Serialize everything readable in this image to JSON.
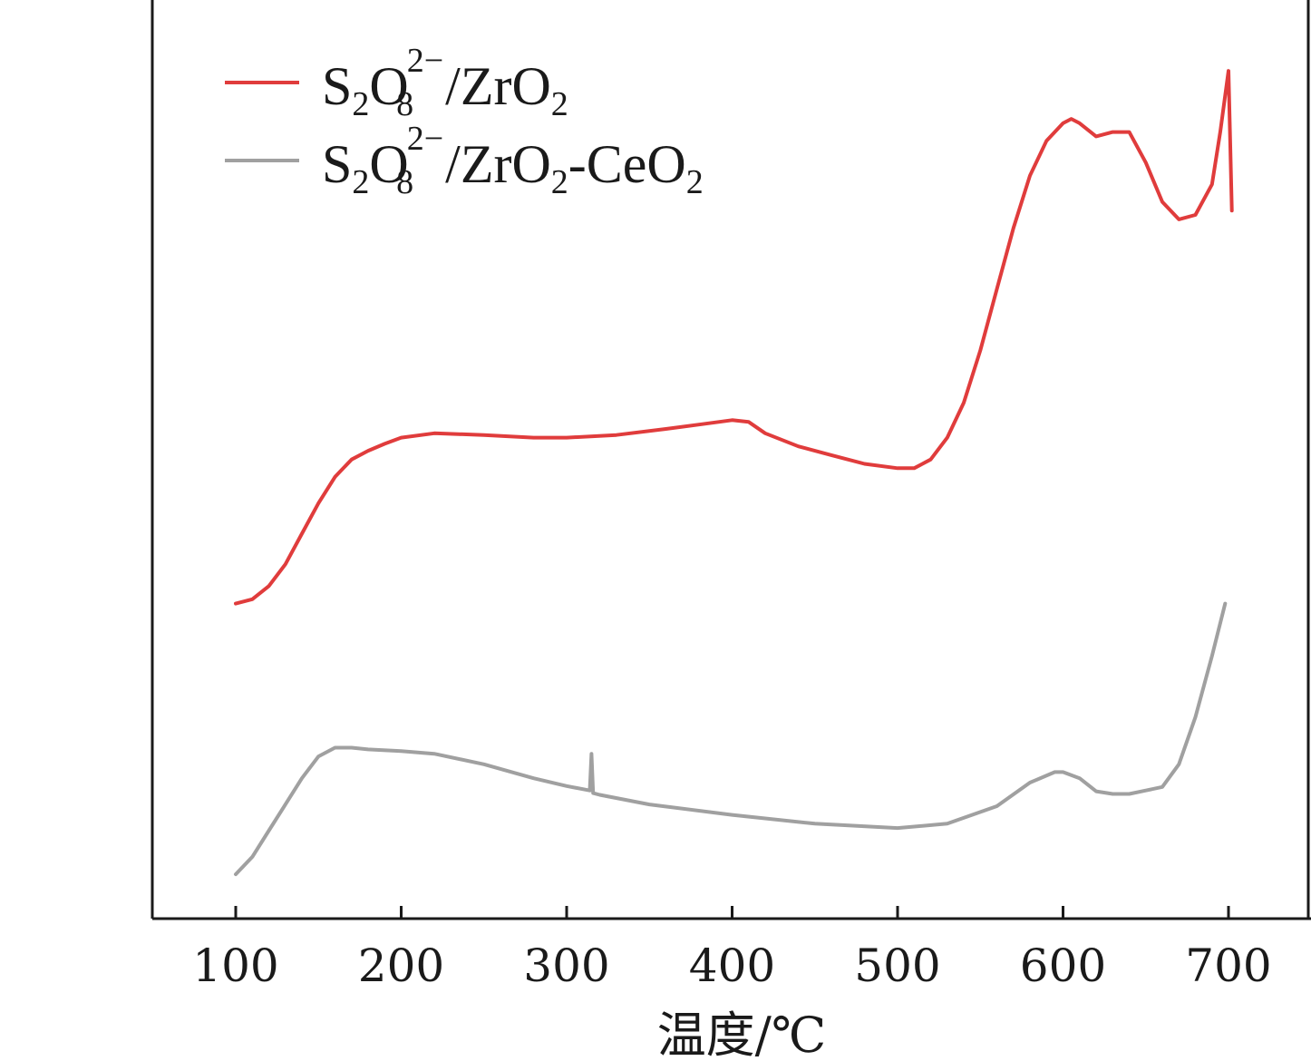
{
  "chart_data": {
    "type": "line",
    "title": "",
    "xlabel": "温度/℃",
    "ylabel": "",
    "xlim": [
      50,
      750
    ],
    "ylim": [
      0,
      1
    ],
    "xticks": [
      "100",
      "200",
      "300",
      "400",
      "500",
      "600",
      "700"
    ],
    "grid": false,
    "legend_position": "top-left",
    "colors": {
      "red": "#e03c3c",
      "gray": "#a0a0a0",
      "axis": "#1a1a1a"
    },
    "series": [
      {
        "name": "S2O8 2- /ZrO2",
        "legend": {
          "base": "S",
          "sub1": "2",
          "mid": "O",
          "sub2": "8",
          "sup": "2−",
          "tail": " /ZrO",
          "sub3": "2",
          "tail2": ""
        },
        "color": "#e03c3c",
        "x": [
          100,
          110,
          120,
          130,
          140,
          150,
          160,
          170,
          180,
          190,
          200,
          220,
          250,
          280,
          300,
          330,
          360,
          380,
          400,
          410,
          420,
          440,
          460,
          480,
          500,
          510,
          520,
          530,
          540,
          550,
          560,
          570,
          580,
          590,
          600,
          605,
          610,
          620,
          630,
          640,
          650,
          660,
          670,
          680,
          690,
          695,
          700,
          702
        ],
        "y": [
          0.34,
          0.345,
          0.36,
          0.385,
          0.42,
          0.455,
          0.485,
          0.505,
          0.515,
          0.523,
          0.53,
          0.535,
          0.533,
          0.53,
          0.53,
          0.533,
          0.54,
          0.545,
          0.55,
          0.548,
          0.535,
          0.52,
          0.51,
          0.5,
          0.495,
          0.495,
          0.505,
          0.53,
          0.57,
          0.63,
          0.7,
          0.77,
          0.83,
          0.87,
          0.89,
          0.895,
          0.89,
          0.875,
          0.88,
          0.88,
          0.845,
          0.8,
          0.78,
          0.785,
          0.82,
          0.88,
          0.95,
          0.79
        ]
      },
      {
        "name": "S2O8 2- /ZrO2-CeO2",
        "legend": {
          "base": "S",
          "sub1": "2",
          "mid": "O",
          "sub2": "8",
          "sup": "2−",
          "tail": " /ZrO",
          "sub3": "2",
          "tail2": "-CeO",
          "sub4": "2"
        },
        "color": "#a0a0a0",
        "x": [
          100,
          110,
          120,
          130,
          140,
          150,
          160,
          170,
          180,
          200,
          220,
          250,
          280,
          300,
          314,
          315,
          316,
          320,
          350,
          400,
          450,
          500,
          530,
          560,
          580,
          595,
          600,
          610,
          620,
          630,
          640,
          650,
          660,
          670,
          680,
          690,
          698
        ],
        "y": [
          0.03,
          0.05,
          0.08,
          0.11,
          0.14,
          0.165,
          0.175,
          0.175,
          0.173,
          0.171,
          0.168,
          0.156,
          0.14,
          0.131,
          0.126,
          0.168,
          0.123,
          0.121,
          0.11,
          0.098,
          0.088,
          0.083,
          0.088,
          0.108,
          0.135,
          0.147,
          0.147,
          0.14,
          0.125,
          0.122,
          0.122,
          0.126,
          0.13,
          0.156,
          0.21,
          0.28,
          0.34
        ]
      }
    ]
  }
}
